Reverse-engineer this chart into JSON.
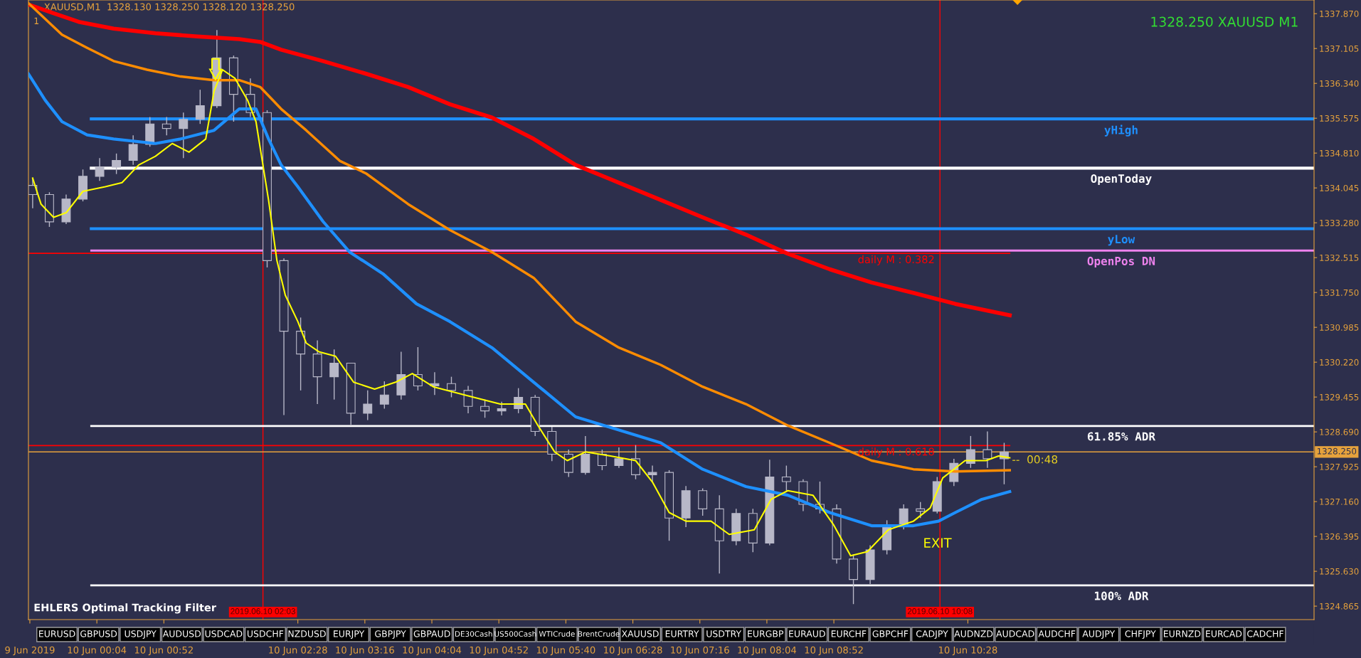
{
  "chart_data": [
    {
      "type": "candlestick",
      "title": "XAUUSD,M1  1328.130 1328.250 1328.120 1328.250",
      "subtitle": "1",
      "x": [
        "2019-06-09T23:18",
        "2019-06-09T23:30",
        "2019-06-09T23:42",
        "2019-06-09T23:54",
        "2019-06-10T00:06",
        "2019-06-10T00:18",
        "2019-06-10T00:30",
        "2019-06-10T00:42",
        "2019-06-10T00:54",
        "2019-06-10T01:06",
        "2019-06-10T01:18",
        "2019-06-10T01:30",
        "2019-06-10T01:42",
        "2019-06-10T01:54",
        "2019-06-10T02:06",
        "2019-06-10T02:18",
        "2019-06-10T02:30",
        "2019-06-10T02:42",
        "2019-06-10T02:54",
        "2019-06-10T03:06",
        "2019-06-10T03:18",
        "2019-06-10T03:30",
        "2019-06-10T03:42",
        "2019-06-10T03:54",
        "2019-06-10T04:06",
        "2019-06-10T04:18",
        "2019-06-10T04:30",
        "2019-06-10T04:42",
        "2019-06-10T04:54",
        "2019-06-10T05:06",
        "2019-06-10T05:18",
        "2019-06-10T05:30",
        "2019-06-10T05:42",
        "2019-06-10T05:54",
        "2019-06-10T06:06",
        "2019-06-10T06:18",
        "2019-06-10T06:30",
        "2019-06-10T06:42",
        "2019-06-10T06:54",
        "2019-06-10T07:06",
        "2019-06-10T07:18",
        "2019-06-10T07:30",
        "2019-06-10T07:42",
        "2019-06-10T07:54",
        "2019-06-10T08:06",
        "2019-06-10T08:18",
        "2019-06-10T08:30",
        "2019-06-10T08:42",
        "2019-06-10T08:54",
        "2019-06-10T09:06",
        "2019-06-10T09:18",
        "2019-06-10T09:30",
        "2019-06-10T09:42",
        "2019-06-10T09:54",
        "2019-06-10T10:06",
        "2019-06-10T10:18",
        "2019-06-10T10:30",
        "2019-06-10T10:42",
        "2019-06-10T10:54"
      ],
      "ohlc": [
        [
          1334.1,
          1334.25,
          1333.6,
          1333.9
        ],
        [
          1333.9,
          1333.95,
          1333.19,
          1333.3
        ],
        [
          1333.3,
          1333.9,
          1333.25,
          1333.8
        ],
        [
          1333.8,
          1334.45,
          1333.75,
          1334.3
        ],
        [
          1334.3,
          1334.7,
          1334.2,
          1334.5
        ],
        [
          1334.5,
          1334.8,
          1334.35,
          1334.65
        ],
        [
          1334.65,
          1335.2,
          1334.55,
          1335.0
        ],
        [
          1335.0,
          1335.6,
          1334.95,
          1335.45
        ],
        [
          1335.45,
          1335.6,
          1335.2,
          1335.35
        ],
        [
          1335.35,
          1335.7,
          1334.7,
          1335.55
        ],
        [
          1335.55,
          1336.2,
          1335.45,
          1335.85
        ],
        [
          1335.85,
          1337.51,
          1335.8,
          1336.9
        ],
        [
          1336.9,
          1336.95,
          1335.5,
          1336.1
        ],
        [
          1336.1,
          1336.45,
          1335.6,
          1335.7
        ],
        [
          1335.7,
          1335.75,
          1332.3,
          1332.45
        ],
        [
          1332.45,
          1332.5,
          1329.06,
          1330.9
        ],
        [
          1330.9,
          1331.2,
          1329.6,
          1330.4
        ],
        [
          1330.4,
          1330.7,
          1329.3,
          1329.9
        ],
        [
          1329.9,
          1330.5,
          1329.4,
          1330.2
        ],
        [
          1330.2,
          1330.2,
          1328.85,
          1329.1
        ],
        [
          1329.1,
          1329.6,
          1328.95,
          1329.3
        ],
        [
          1329.3,
          1329.8,
          1329.2,
          1329.5
        ],
        [
          1329.5,
          1330.45,
          1329.4,
          1329.95
        ],
        [
          1329.95,
          1330.55,
          1329.6,
          1329.7
        ],
        [
          1329.7,
          1330.0,
          1329.5,
          1329.75
        ],
        [
          1329.75,
          1329.9,
          1329.45,
          1329.6
        ],
        [
          1329.6,
          1329.7,
          1329.1,
          1329.25
        ],
        [
          1329.25,
          1329.4,
          1329.0,
          1329.15
        ],
        [
          1329.15,
          1329.35,
          1329.05,
          1329.2
        ],
        [
          1329.2,
          1329.65,
          1329.1,
          1329.45
        ],
        [
          1329.45,
          1329.5,
          1328.6,
          1328.7
        ],
        [
          1328.7,
          1328.8,
          1328.05,
          1328.2
        ],
        [
          1328.2,
          1328.3,
          1327.7,
          1327.8
        ],
        [
          1327.8,
          1328.6,
          1327.75,
          1328.2
        ],
        [
          1328.2,
          1328.3,
          1327.85,
          1327.95
        ],
        [
          1327.95,
          1328.35,
          1327.9,
          1328.1
        ],
        [
          1328.1,
          1328.4,
          1327.65,
          1327.75
        ],
        [
          1327.75,
          1327.95,
          1327.6,
          1327.8
        ],
        [
          1327.8,
          1327.85,
          1326.3,
          1326.8
        ],
        [
          1326.8,
          1327.5,
          1326.6,
          1327.4
        ],
        [
          1327.4,
          1327.45,
          1326.85,
          1327.0
        ],
        [
          1327.0,
          1327.3,
          1325.58,
          1326.3
        ],
        [
          1326.3,
          1327.0,
          1326.2,
          1326.9
        ],
        [
          1326.9,
          1327.0,
          1326.05,
          1326.25
        ],
        [
          1326.25,
          1328.08,
          1326.2,
          1327.7
        ],
        [
          1327.7,
          1327.95,
          1327.4,
          1327.6
        ],
        [
          1327.6,
          1327.65,
          1326.95,
          1327.1
        ],
        [
          1327.1,
          1327.6,
          1326.9,
          1327.0
        ],
        [
          1327.0,
          1327.1,
          1325.8,
          1325.9
        ],
        [
          1325.9,
          1326.0,
          1324.91,
          1325.45
        ],
        [
          1325.45,
          1326.2,
          1325.35,
          1326.1
        ],
        [
          1326.1,
          1326.75,
          1326.0,
          1326.65
        ],
        [
          1326.65,
          1327.1,
          1326.55,
          1327.0
        ],
        [
          1327.0,
          1327.15,
          1326.8,
          1326.95
        ],
        [
          1326.95,
          1327.7,
          1326.9,
          1327.6
        ],
        [
          1327.6,
          1328.1,
          1327.5,
          1328.0
        ],
        [
          1328.0,
          1328.6,
          1327.9,
          1328.3
        ],
        [
          1328.3,
          1328.7,
          1327.9,
          1328.1
        ],
        [
          1328.1,
          1328.45,
          1327.54,
          1328.25
        ]
      ],
      "series": [
        {
          "type": "line",
          "color": "#ff0000",
          "x": [
            "2019-06-09T23:15",
            "2019-06-09T23:33",
            "2019-06-09T23:51",
            "2019-06-10T00:16",
            "2019-06-10T00:46",
            "2019-06-10T01:16",
            "2019-06-10T01:46",
            "2019-06-10T02:01",
            "2019-06-10T02:16",
            "2019-06-10T02:46",
            "2019-06-10T03:17",
            "2019-06-10T03:47",
            "2019-06-10T04:17",
            "2019-06-10T04:47",
            "2019-06-10T05:17",
            "2019-06-10T05:47",
            "2019-06-10T06:18",
            "2019-06-10T06:48",
            "2019-06-10T07:18",
            "2019-06-10T07:49",
            "2019-06-10T08:19",
            "2019-06-10T08:49",
            "2019-06-10T09:19",
            "2019-06-10T09:49",
            "2019-06-10T10:19",
            "2019-06-10T10:44",
            "2019-06-10T10:58"
          ],
          "values": [
            1338.07,
            1337.88,
            1337.69,
            1337.54,
            1337.44,
            1337.37,
            1337.31,
            1337.25,
            1337.08,
            1336.83,
            1336.55,
            1336.26,
            1335.88,
            1335.59,
            1335.12,
            1334.55,
            1334.16,
            1333.78,
            1333.4,
            1333.02,
            1332.6,
            1332.26,
            1331.97,
            1331.74,
            1331.5,
            1331.34,
            1331.25
          ]
        },
        {
          "type": "line",
          "color": "#ff8c00",
          "x": [
            "2019-06-09T23:15",
            "2019-06-09T23:39",
            "2019-06-09T23:57",
            "2019-06-10T00:16",
            "2019-06-10T00:40",
            "2019-06-10T01:04",
            "2019-06-10T01:28",
            "2019-06-10T01:46",
            "2019-06-10T02:01",
            "2019-06-10T02:16",
            "2019-06-10T02:34",
            "2019-06-10T02:58",
            "2019-06-10T03:17",
            "2019-06-10T03:47",
            "2019-06-10T04:17",
            "2019-06-10T04:47",
            "2019-06-10T05:17",
            "2019-06-10T05:47",
            "2019-06-10T06:18",
            "2019-06-10T06:48",
            "2019-06-10T07:18",
            "2019-06-10T07:49",
            "2019-06-10T08:19",
            "2019-06-10T08:49",
            "2019-06-10T09:19",
            "2019-06-10T09:49",
            "2019-06-10T10:19",
            "2019-06-10T10:58"
          ],
          "values": [
            1338.1,
            1337.41,
            1337.12,
            1336.83,
            1336.64,
            1336.49,
            1336.41,
            1336.41,
            1336.26,
            1335.78,
            1335.31,
            1334.64,
            1334.36,
            1333.69,
            1333.12,
            1332.64,
            1332.07,
            1331.11,
            1330.54,
            1330.16,
            1329.68,
            1329.3,
            1328.83,
            1328.45,
            1328.06,
            1327.87,
            1327.82,
            1327.85
          ]
        },
        {
          "type": "line",
          "color": "#1e90ff",
          "x": [
            "2019-06-09T23:15",
            "2019-06-09T23:27",
            "2019-06-09T23:39",
            "2019-06-09T23:57",
            "2019-06-10T00:16",
            "2019-06-10T00:46",
            "2019-06-10T01:04",
            "2019-06-10T01:28",
            "2019-06-10T01:46",
            "2019-06-10T01:58",
            "2019-06-10T02:07",
            "2019-06-10T02:16",
            "2019-06-10T02:28",
            "2019-06-10T02:46",
            "2019-06-10T03:05",
            "2019-06-10T03:29",
            "2019-06-10T03:53",
            "2019-06-10T04:17",
            "2019-06-10T04:47",
            "2019-06-10T05:17",
            "2019-06-10T05:47",
            "2019-06-10T06:18",
            "2019-06-10T06:48",
            "2019-06-10T07:18",
            "2019-06-10T07:49",
            "2019-06-10T08:19",
            "2019-06-10T08:49",
            "2019-06-10T09:19",
            "2019-06-10T09:49",
            "2019-06-10T10:07",
            "2019-06-10T10:19",
            "2019-06-10T10:38",
            "2019-06-10T10:58"
          ],
          "values": [
            1336.55,
            1335.97,
            1335.5,
            1335.21,
            1335.12,
            1335.02,
            1335.12,
            1335.31,
            1335.78,
            1335.78,
            1335.12,
            1334.55,
            1334.07,
            1333.31,
            1332.64,
            1332.16,
            1331.5,
            1331.11,
            1330.54,
            1329.78,
            1329.02,
            1328.73,
            1328.45,
            1327.87,
            1327.49,
            1327.3,
            1326.92,
            1326.63,
            1326.63,
            1326.73,
            1326.92,
            1327.21,
            1327.38
          ]
        },
        {
          "type": "line",
          "color": "#ffff00",
          "x": [
            "2019-06-09T23:18",
            "2019-06-09T23:24",
            "2019-06-09T23:33",
            "2019-06-09T23:42",
            "2019-06-09T23:54",
            "2019-06-10T00:10",
            "2019-06-10T00:22",
            "2019-06-10T00:34",
            "2019-06-10T00:46",
            "2019-06-10T00:58",
            "2019-06-10T01:10",
            "2019-06-10T01:22",
            "2019-06-10T01:28",
            "2019-06-10T01:34",
            "2019-06-10T01:43",
            "2019-06-10T01:52",
            "2019-06-10T01:58",
            "2019-06-10T02:07",
            "2019-06-10T02:13",
            "2019-06-10T02:19",
            "2019-06-10T02:28",
            "2019-06-10T02:34",
            "2019-06-10T02:43",
            "2019-06-10T02:55",
            "2019-06-10T03:08",
            "2019-06-10T03:23",
            "2019-06-10T03:38",
            "2019-06-10T03:50",
            "2019-06-10T04:05",
            "2019-06-10T04:29",
            "2019-06-10T04:53",
            "2019-06-10T05:11",
            "2019-06-10T05:20",
            "2019-06-10T05:32",
            "2019-06-10T05:41",
            "2019-06-10T05:54",
            "2019-06-10T06:12",
            "2019-06-10T06:30",
            "2019-06-10T06:42",
            "2019-06-10T06:54",
            "2019-06-10T07:06",
            "2019-06-10T07:24",
            "2019-06-10T07:37",
            "2019-06-10T07:55",
            "2019-06-10T08:07",
            "2019-06-10T08:19",
            "2019-06-10T08:37",
            "2019-06-10T08:52",
            "2019-06-10T09:04",
            "2019-06-10T09:16",
            "2019-06-10T09:31",
            "2019-06-10T09:49",
            "2019-06-10T10:01",
            "2019-06-10T10:10",
            "2019-06-10T10:26",
            "2019-06-10T10:41",
            "2019-06-10T10:50",
            "2019-06-10T10:58"
          ],
          "values": [
            1334.26,
            1333.69,
            1333.4,
            1333.5,
            1333.97,
            1334.07,
            1334.16,
            1334.55,
            1334.74,
            1335.02,
            1334.83,
            1335.12,
            1336.17,
            1336.64,
            1336.45,
            1335.97,
            1335.5,
            1333.78,
            1332.45,
            1331.69,
            1331.11,
            1330.64,
            1330.45,
            1330.35,
            1329.78,
            1329.63,
            1329.78,
            1329.97,
            1329.68,
            1329.49,
            1329.3,
            1329.3,
            1328.83,
            1328.25,
            1328.06,
            1328.25,
            1328.16,
            1328.06,
            1327.59,
            1326.92,
            1326.73,
            1326.73,
            1326.44,
            1326.54,
            1327.21,
            1327.4,
            1327.3,
            1326.64,
            1325.97,
            1326.06,
            1326.54,
            1326.73,
            1327.02,
            1327.68,
            1328.06,
            1328.06,
            1328.16,
            1328.12
          ]
        },
        {
          "type": "line",
          "name": "yHigh",
          "color": "#1e90ff",
          "x": [
            "2019-06-10T00:00",
            "2019-06-10T14:36"
          ],
          "values": [
            1335.56,
            1335.56
          ]
        },
        {
          "type": "line",
          "name": "OpenToday",
          "color": "#ffffff",
          "x": [
            "2019-06-10T00:00",
            "2019-06-10T14:36"
          ],
          "values": [
            1334.48,
            1334.48
          ]
        },
        {
          "type": "line",
          "name": "yLow",
          "color": "#1e90ff",
          "x": [
            "2019-06-10T00:00",
            "2019-06-10T14:36"
          ],
          "values": [
            1333.15,
            1333.15
          ]
        },
        {
          "type": "line",
          "name": "OpenPos DN",
          "color": "#ee82ee",
          "x": [
            "2019-06-10T00:00",
            "2019-06-10T14:36"
          ],
          "values": [
            1332.67,
            1332.67
          ]
        },
        {
          "type": "line",
          "name": "61.85% ADR",
          "color": "#ffffff",
          "x": [
            "2019-06-10T00:00",
            "2019-06-10T14:36"
          ],
          "values": [
            1328.82,
            1328.82
          ]
        },
        {
          "type": "line",
          "name": "100% ADR",
          "color": "#ffffff",
          "x": [
            "2019-06-10T00:00",
            "2019-06-10T14:36"
          ],
          "values": [
            1325.32,
            1325.32
          ]
        },
        {
          "type": "line",
          "name": "daily M : 0.382",
          "color": "#ff0000",
          "x": [
            "2019-06-09T23:15",
            "2019-06-10T10:58"
          ],
          "values": [
            1332.61,
            1332.61
          ]
        },
        {
          "type": "line",
          "name": "daily M : 0.618",
          "color": "#ff0000",
          "x": [
            "2019-06-09T23:15",
            "2019-06-10T10:58"
          ],
          "values": [
            1328.39,
            1328.39
          ]
        }
      ],
      "ref_lines": [
        {
          "axis": "x",
          "value": "2019-06-10T02:03",
          "label": "2019.06.10 02:03",
          "color": "#ff0000"
        },
        {
          "axis": "x",
          "value": "2019-06-10T10:08",
          "label": "2019.06.10 10:08",
          "color": "#ff0000"
        },
        {
          "axis": "y",
          "value": 1328.25,
          "label": "1328.250",
          "color": "#e6a23c"
        }
      ],
      "annotations": [
        "1328.250 XAUUSD M1",
        "EHLERS Optimal Tracking Filter",
        "--  00:48",
        "EXIT"
      ],
      "xlim": [
        "2019-06-09T23:15",
        "2019-06-10T14:36"
      ],
      "xticks": [
        {
          "value": "2019-06-09T23:16",
          "label": "9 Jun 2019"
        },
        {
          "value": "2019-06-10T00:04",
          "label": "10 Jun 00:04"
        },
        {
          "value": "2019-06-10T00:52",
          "label": "10 Jun 00:52"
        },
        {
          "value": "2019-06-10T02:28",
          "label": "10 Jun 02:28"
        },
        {
          "value": "2019-06-10T03:16",
          "label": "10 Jun 03:16"
        },
        {
          "value": "2019-06-10T04:04",
          "label": "10 Jun 04:04"
        },
        {
          "value": "2019-06-10T04:52",
          "label": "10 Jun 04:52"
        },
        {
          "value": "2019-06-10T05:40",
          "label": "10 Jun 05:40"
        },
        {
          "value": "2019-06-10T06:28",
          "label": "10 Jun 06:28"
        },
        {
          "value": "2019-06-10T07:16",
          "label": "10 Jun 07:16"
        },
        {
          "value": "2019-06-10T08:04",
          "label": "10 Jun 08:04"
        },
        {
          "value": "2019-06-10T08:52",
          "label": "10 Jun 08:52"
        },
        {
          "value": "2019-06-10T10:28",
          "label": "10 Jun 10:28"
        }
      ],
      "ylim": [
        1324.57,
        1338.17
      ],
      "yticks": [
        {
          "value": 1337.87,
          "label": "1337.870"
        },
        {
          "value": 1337.105,
          "label": "1337.105"
        },
        {
          "value": 1336.34,
          "label": "1336.340"
        },
        {
          "value": 1335.575,
          "label": "1335.575"
        },
        {
          "value": 1334.81,
          "label": "1334.810"
        },
        {
          "value": 1334.045,
          "label": "1334.045"
        },
        {
          "value": 1333.28,
          "label": "1333.280"
        },
        {
          "value": 1332.515,
          "label": "1332.515"
        },
        {
          "value": 1331.75,
          "label": "1331.750"
        },
        {
          "value": 1330.985,
          "label": "1330.985"
        },
        {
          "value": 1330.22,
          "label": "1330.220"
        },
        {
          "value": 1329.455,
          "label": "1329.455"
        },
        {
          "value": 1328.69,
          "label": "1328.690"
        },
        {
          "value": 1327.925,
          "label": "1327.925"
        },
        {
          "value": 1327.16,
          "label": "1327.160"
        },
        {
          "value": 1326.395,
          "label": "1326.395"
        },
        {
          "value": 1325.63,
          "label": "1325.630"
        },
        {
          "value": 1324.865,
          "label": "1324.865"
        }
      ]
    },
    {
      "type": "other",
      "annotations": [
        "EURUSD",
        "GBPUSD",
        "USDJPY",
        "AUDUSD",
        "USDCAD",
        "USDCHF",
        "NZDUSD",
        "EURJPY",
        "GBPJPY",
        "GBPAUD",
        "DE30Cash",
        "US500Cash",
        "WTICrude",
        "BrentCrude",
        "XAUUSD",
        "EURTRY",
        "USDTRY",
        "EURGBP",
        "EURAUD",
        "EURCHF",
        "GBPCHF",
        "CADJPY",
        "AUDNZD",
        "AUDCAD",
        "AUDCHF",
        "AUDJPY",
        "CHFJPY",
        "EURNZD",
        "EURCAD",
        "CADCHF"
      ]
    }
  ]
}
